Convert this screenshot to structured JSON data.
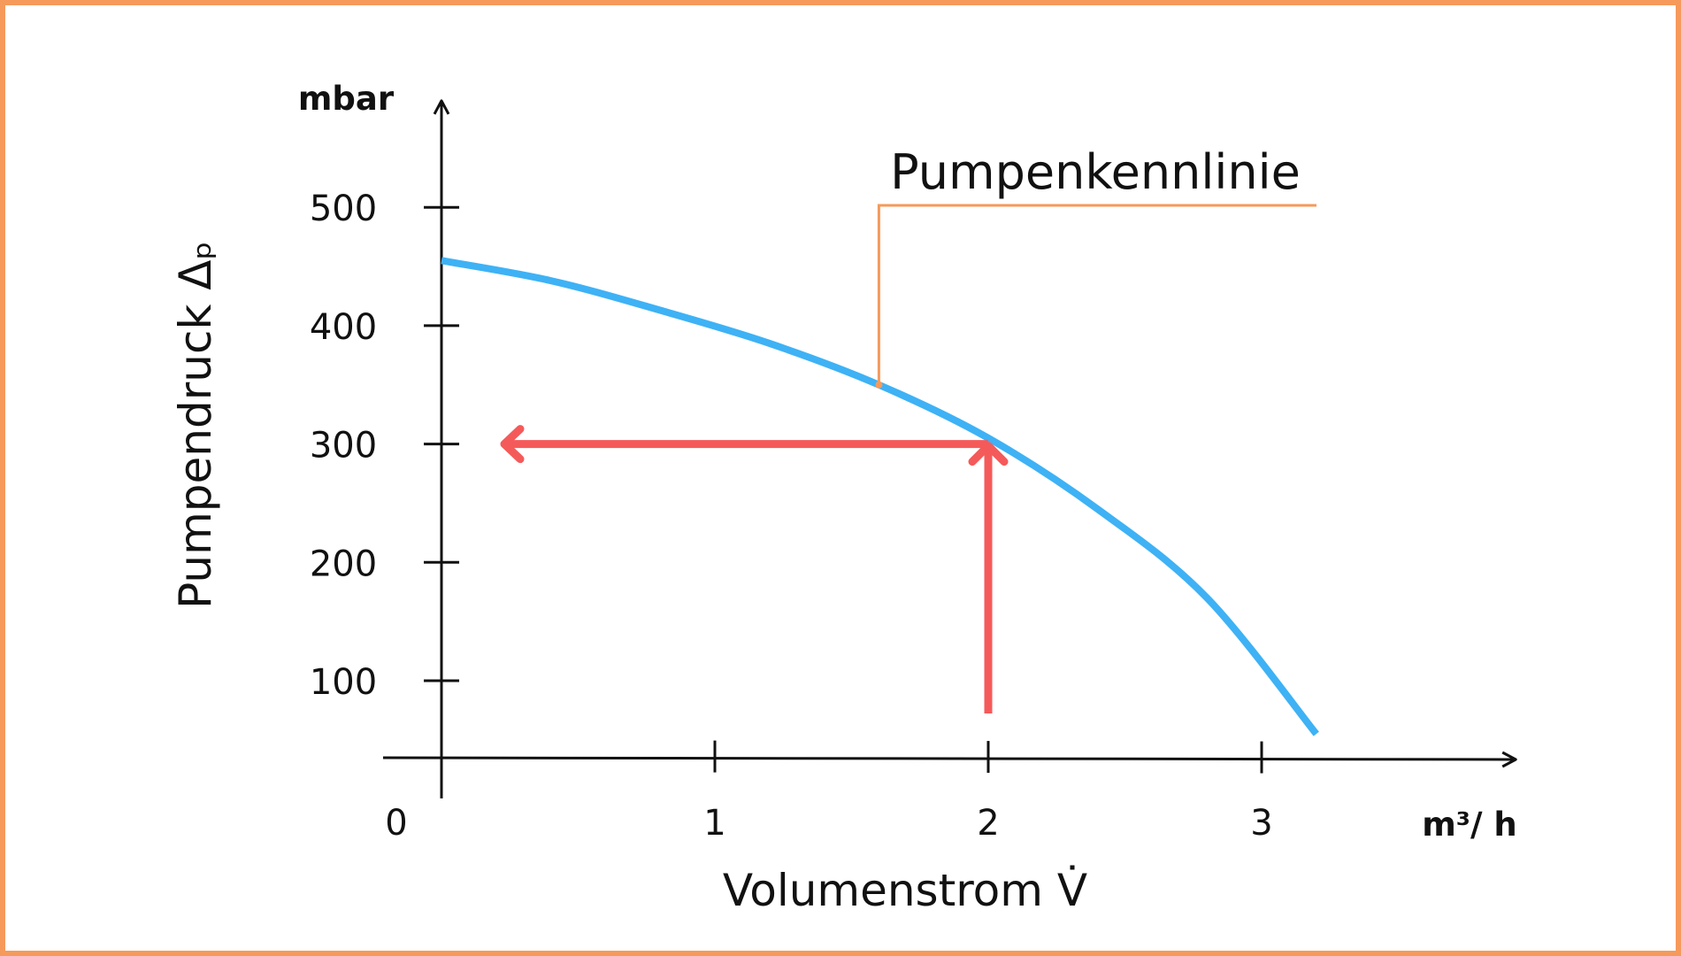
{
  "chart_data": {
    "type": "line",
    "xlabel": "Volumenstrom V̇",
    "ylabel": "Pumpendruck Δₚ",
    "x_unit": "m³/ h",
    "y_unit": "mbar",
    "xlim": [
      0,
      3.8
    ],
    "ylim": [
      35,
      590
    ],
    "x_ticks": [
      1,
      2,
      3
    ],
    "x_tick_labels": [
      "1",
      "2",
      "3"
    ],
    "origin_label": "0",
    "y_ticks": [
      100,
      200,
      300,
      400,
      500
    ],
    "y_tick_labels": [
      "100",
      "200",
      "300",
      "400",
      "500"
    ],
    "grid": false,
    "series": [
      {
        "x": [
          0.0,
          0.4,
          0.8,
          1.2,
          1.6,
          2.0,
          2.4,
          2.8,
          3.2
        ],
        "y": [
          455,
          438,
          413,
          385,
          350,
          305,
          245,
          170,
          55
        ],
        "color": "#3EB2F5"
      }
    ],
    "annotations": [
      {
        "text": "Pumpenkennlinie",
        "x": 1.6,
        "y": 350,
        "color": "#F59A5B"
      }
    ],
    "operating_point": {
      "x": 2,
      "y": 300,
      "color": "#F55A5A"
    }
  },
  "colors": {
    "frame": "#F59A5B",
    "axis": "#111111",
    "curve": "#3EB2F5",
    "arrow": "#F55A5A",
    "leader": "#F59A5B"
  }
}
